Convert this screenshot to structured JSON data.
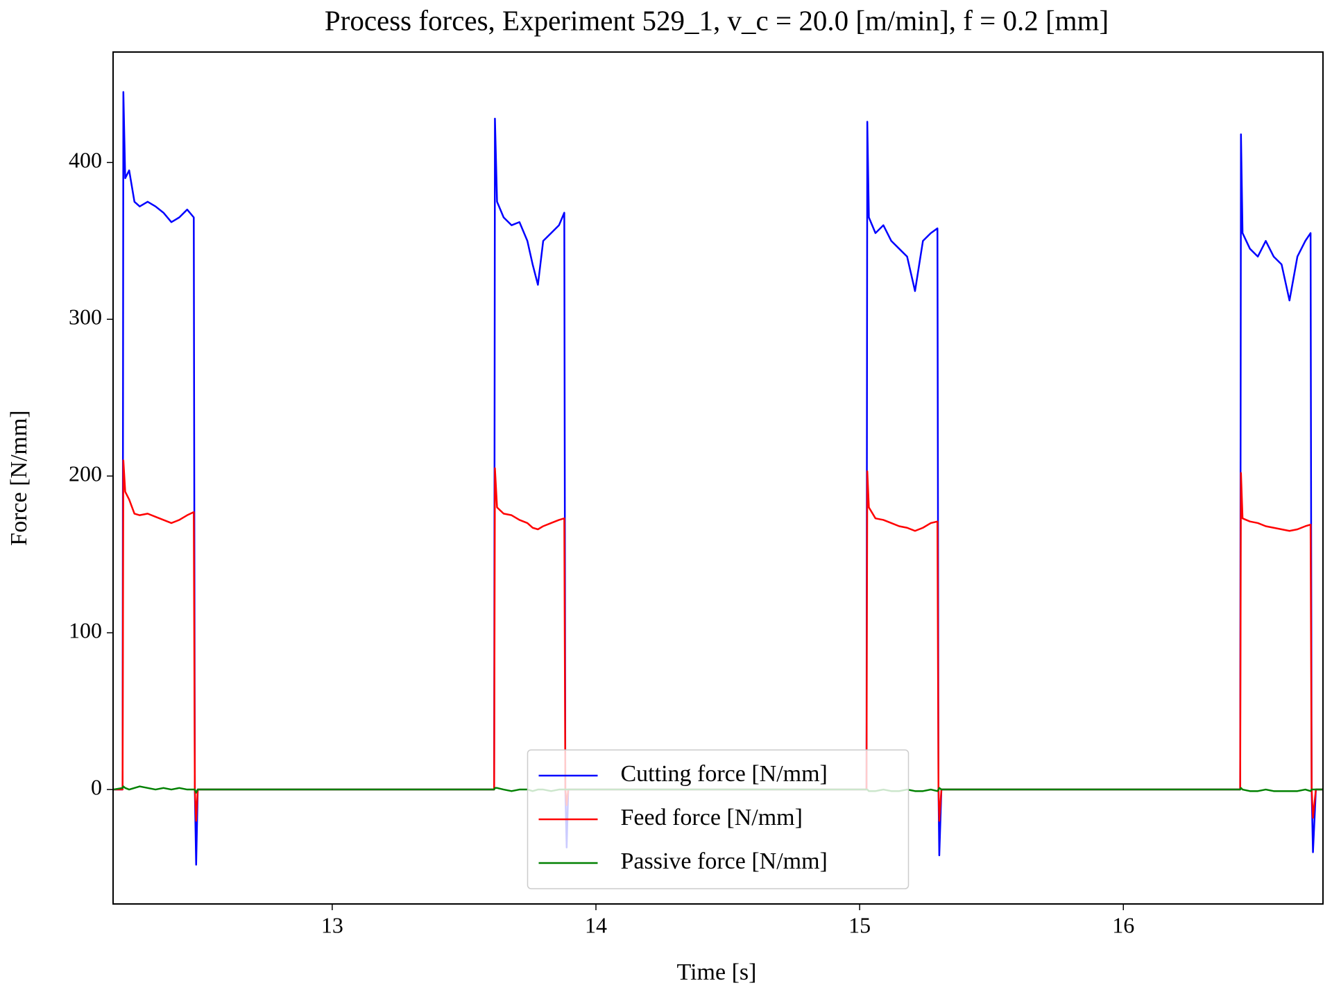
{
  "chart_data": {
    "type": "line",
    "title": "Process forces, Experiment 529_1, v_c = 20.0 [m/min], f = 0.2 [mm]",
    "x_label": "Time [s]",
    "y_label": "Force [N/mm]",
    "xlim": [
      12.169,
      16.757
    ],
    "ylim": [
      -73,
      470.5
    ],
    "xticks": [
      13,
      14,
      15,
      16
    ],
    "yticks": [
      0,
      100,
      200,
      300,
      400
    ],
    "grid": false,
    "legend": "lower center",
    "x": [
      12.17,
      12.205,
      12.208,
      12.215,
      12.23,
      12.25,
      12.27,
      12.3,
      12.33,
      12.36,
      12.39,
      12.42,
      12.45,
      12.475,
      12.479,
      12.484,
      12.49,
      12.55,
      13.0,
      13.6,
      13.614,
      13.617,
      13.625,
      13.65,
      13.68,
      13.71,
      13.74,
      13.76,
      13.78,
      13.8,
      13.83,
      13.86,
      13.88,
      13.884,
      13.889,
      13.895,
      14.0,
      14.5,
      15.02,
      15.026,
      15.029,
      15.035,
      15.06,
      15.09,
      15.12,
      15.15,
      15.18,
      15.21,
      15.24,
      15.27,
      15.295,
      15.299,
      15.302,
      15.31,
      15.5,
      16.0,
      16.44,
      16.443,
      16.446,
      16.452,
      16.48,
      16.51,
      16.54,
      16.57,
      16.6,
      16.63,
      16.66,
      16.69,
      16.71,
      16.714,
      16.719,
      16.73,
      16.757
    ],
    "series": [
      {
        "name": "Cutting force [N/mm]",
        "color": "#0000ff",
        "values": [
          0,
          0,
          445,
          390,
          395,
          375,
          372,
          375,
          372,
          368,
          362,
          365,
          370,
          365,
          0,
          -48,
          0,
          0,
          0,
          0,
          0,
          428,
          375,
          365,
          360,
          362,
          350,
          335,
          322,
          350,
          355,
          360,
          368,
          0,
          -37,
          0,
          0,
          0,
          0,
          0,
          426,
          365,
          355,
          360,
          350,
          345,
          340,
          318,
          350,
          355,
          358,
          0,
          -42,
          0,
          0,
          0,
          0,
          0,
          418,
          355,
          345,
          340,
          350,
          340,
          335,
          312,
          340,
          350,
          355,
          0,
          -40,
          0,
          0
        ]
      },
      {
        "name": "Feed force [N/mm]",
        "color": "#ff0000",
        "values": [
          0,
          0,
          210,
          190,
          185,
          176,
          175,
          176,
          174,
          172,
          170,
          172,
          175,
          177,
          0,
          -20,
          0,
          0,
          0,
          0,
          0,
          205,
          180,
          176,
          175,
          172,
          170,
          167,
          166,
          168,
          170,
          172,
          173,
          0,
          -10,
          0,
          0,
          0,
          0,
          0,
          203,
          180,
          173,
          172,
          170,
          168,
          167,
          165,
          167,
          170,
          171,
          0,
          -20,
          0,
          0,
          0,
          0,
          0,
          202,
          173,
          171,
          170,
          168,
          167,
          166,
          165,
          166,
          168,
          169,
          0,
          -18,
          0,
          0
        ]
      },
      {
        "name": "Passive force [N/mm]",
        "color": "#008000",
        "values": [
          0,
          1,
          2,
          1,
          0,
          1,
          2,
          1,
          0,
          1,
          0,
          1,
          0,
          0,
          0,
          -2,
          0,
          0,
          0,
          0,
          0,
          1,
          1,
          0,
          -1,
          0,
          0,
          -1,
          0,
          0,
          -1,
          0,
          0,
          0,
          0,
          0,
          0,
          0,
          0,
          0,
          0,
          -1,
          -1,
          0,
          -1,
          -1,
          0,
          -1,
          -1,
          0,
          -1,
          0,
          1,
          0,
          0,
          0,
          0,
          0,
          1,
          0,
          -1,
          -1,
          0,
          -1,
          -1,
          -1,
          -1,
          0,
          -1,
          0,
          0,
          0,
          0
        ]
      }
    ]
  }
}
